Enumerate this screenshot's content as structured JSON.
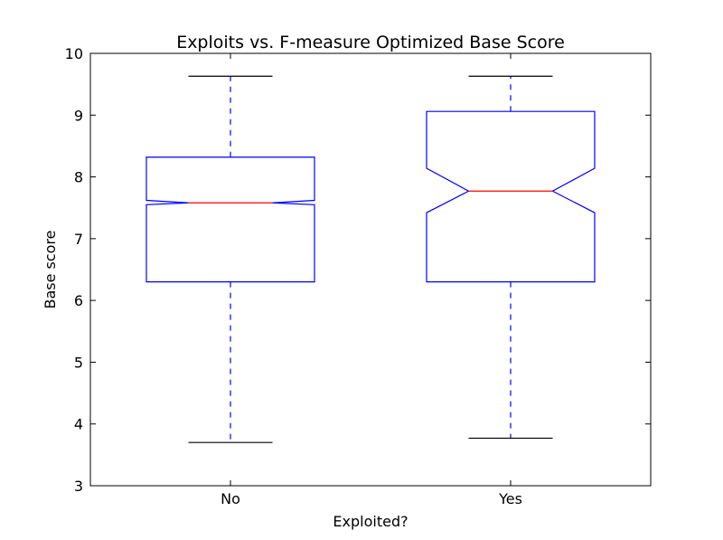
{
  "chart_data": {
    "type": "boxplot",
    "title": "Exploits vs. F-measure Optimized Base Score",
    "xlabel": "Exploited?",
    "ylabel": "Base score",
    "ylim": [
      3,
      10
    ],
    "yticks": [
      3,
      4,
      5,
      6,
      7,
      8,
      9,
      10
    ],
    "categories": [
      "No",
      "Yes"
    ],
    "notched": true,
    "grid": false,
    "boxes": [
      {
        "category": "No",
        "whisker_low": 3.7,
        "q1": 6.3,
        "median": 7.58,
        "q3": 8.32,
        "whisker_high": 9.63,
        "notch_low": 7.55,
        "notch_high": 7.62
      },
      {
        "category": "Yes",
        "whisker_low": 3.77,
        "q1": 6.3,
        "median": 7.77,
        "q3": 9.06,
        "whisker_high": 9.63,
        "notch_low": 7.42,
        "notch_high": 8.14
      }
    ],
    "colors": {
      "box": "#0000ff",
      "median": "#ff0000",
      "whisker": "#0000ff",
      "cap": "#000000",
      "axis": "#000000"
    }
  }
}
